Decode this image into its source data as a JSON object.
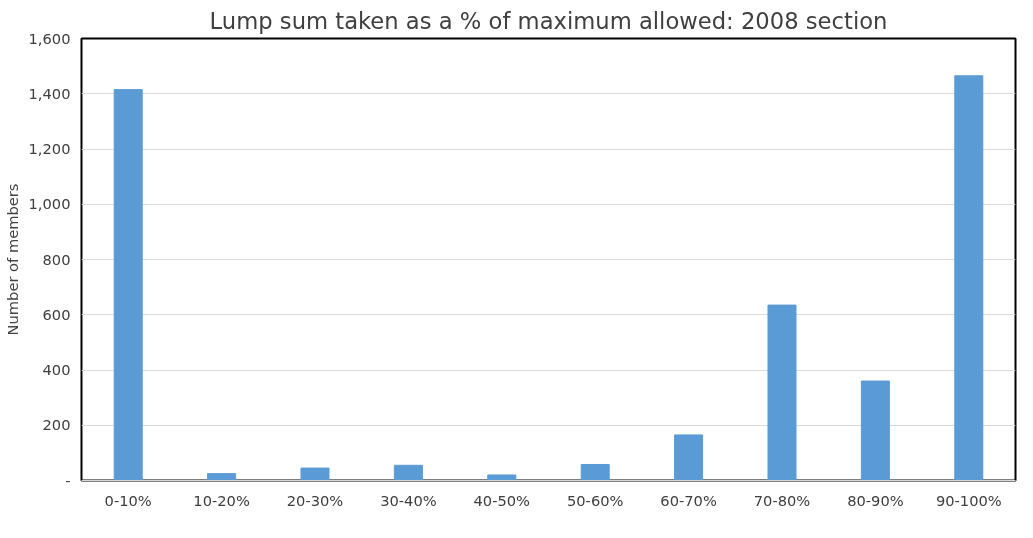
{
  "chart_data": {
    "type": "bar",
    "title": "Lump sum taken as a % of maximum allowed: 2008 section",
    "ylabel": "Number of members",
    "categories": [
      "0-10%",
      "10-20%",
      "20-30%",
      "30-40%",
      "40-50%",
      "50-60%",
      "60-70%",
      "70-80%",
      "80-90%",
      "90-100%"
    ],
    "values": [
      1415,
      25,
      45,
      55,
      20,
      58,
      165,
      635,
      360,
      1465
    ],
    "color": "#5b9bd5",
    "ylim": [
      0,
      1600
    ],
    "yticks": [
      {
        "value": 0,
        "label": "-"
      },
      {
        "value": 200,
        "label": "200"
      },
      {
        "value": 400,
        "label": "400"
      },
      {
        "value": 600,
        "label": "600"
      },
      {
        "value": 800,
        "label": "800"
      },
      {
        "value": 1000,
        "label": "1,000"
      },
      {
        "value": 1200,
        "label": "1,200"
      },
      {
        "value": 1400,
        "label": "1,400"
      },
      {
        "value": 1600,
        "label": "1,600"
      }
    ],
    "grid": "y"
  }
}
